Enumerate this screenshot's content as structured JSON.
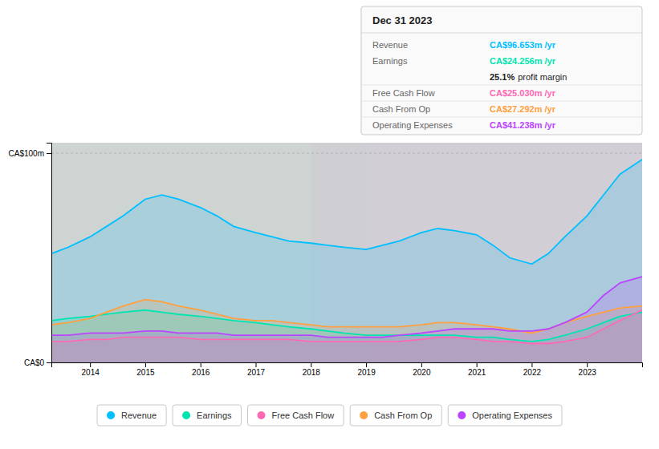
{
  "chart_data": {
    "type": "area",
    "x": [
      2013.3,
      2013.6,
      2014.0,
      2014.3,
      2014.6,
      2015.0,
      2015.3,
      2015.6,
      2016.0,
      2016.3,
      2016.6,
      2017.0,
      2017.3,
      2017.6,
      2018.0,
      2018.3,
      2018.6,
      2019.0,
      2019.3,
      2019.6,
      2020.0,
      2020.3,
      2020.6,
      2021.0,
      2021.3,
      2021.6,
      2022.0,
      2022.3,
      2022.6,
      2023.0,
      2023.3,
      2023.6,
      2024.0
    ],
    "series": [
      {
        "name": "Revenue",
        "color": "#00bfff",
        "values": [
          52,
          55,
          60,
          65,
          70,
          78,
          80,
          78,
          74,
          70,
          65,
          62,
          60,
          58,
          57,
          56,
          55,
          54,
          56,
          58,
          62,
          64,
          63,
          61,
          56,
          50,
          47,
          52,
          60,
          70,
          80,
          90,
          97
        ]
      },
      {
        "name": "Earnings",
        "color": "#00e5b0",
        "values": [
          20,
          21,
          22,
          23,
          24,
          25,
          24,
          23,
          22,
          21,
          20,
          19,
          18,
          17,
          16,
          15,
          14,
          13,
          13,
          13,
          13,
          13,
          13,
          12,
          12,
          11,
          10,
          11,
          13,
          16,
          19,
          22,
          24
        ]
      },
      {
        "name": "Free Cash Flow",
        "color": "#ff69b4",
        "values": [
          10,
          10,
          11,
          11,
          12,
          12,
          12,
          12,
          11,
          11,
          11,
          11,
          11,
          11,
          10,
          10,
          10,
          10,
          10,
          10,
          11,
          12,
          12,
          11,
          10,
          10,
          9,
          9,
          10,
          12,
          16,
          20,
          25
        ]
      },
      {
        "name": "Cash From Op",
        "color": "#ffa040",
        "values": [
          18,
          19,
          21,
          24,
          27,
          30,
          29,
          27,
          25,
          23,
          21,
          20,
          20,
          19,
          18,
          17,
          17,
          17,
          17,
          17,
          18,
          19,
          19,
          18,
          17,
          16,
          14,
          16,
          19,
          22,
          24,
          26,
          27
        ]
      },
      {
        "name": "Operating Expenses",
        "color": "#bb44ff",
        "values": [
          13,
          13,
          14,
          14,
          14,
          15,
          15,
          14,
          14,
          14,
          13,
          13,
          13,
          13,
          13,
          12,
          12,
          12,
          12,
          13,
          14,
          15,
          16,
          16,
          16,
          15,
          15,
          16,
          19,
          24,
          32,
          38,
          41
        ]
      }
    ],
    "xlim": [
      2013.3,
      2024.0
    ],
    "xticks": [
      2014,
      2015,
      2016,
      2017,
      2018,
      2019,
      2020,
      2021,
      2022,
      2023
    ],
    "ylim": [
      0,
      105
    ],
    "yticks": [
      {
        "value": 0,
        "label": "CA$0"
      },
      {
        "value": 100,
        "label": "CA$100m"
      }
    ],
    "grid": true,
    "legend": "bottom",
    "regions": [
      {
        "start": 2013.3,
        "end": 2018.0,
        "color": "#1e3a30"
      },
      {
        "start": 2018.0,
        "end": 2019.0,
        "color": "#252535"
      },
      {
        "start": 2019.0,
        "end": 2024.0,
        "color": "#2e2040"
      }
    ],
    "info_box": {
      "title": "Dec 31 2023",
      "rows": [
        {
          "label": "Revenue",
          "text": "CA$96.653m /yr"
        },
        {
          "label": "Earnings",
          "text": "CA$24.256m /yr"
        },
        {
          "emphasis": "25.1%",
          "text": "profit margin"
        },
        {
          "label": "Free Cash Flow",
          "text": "CA$25.030m /yr"
        },
        {
          "label": "Cash From Op",
          "text": "CA$27.292m /yr"
        },
        {
          "label": "Operating Expenses",
          "text": "CA$41.238m /yr"
        }
      ]
    }
  }
}
